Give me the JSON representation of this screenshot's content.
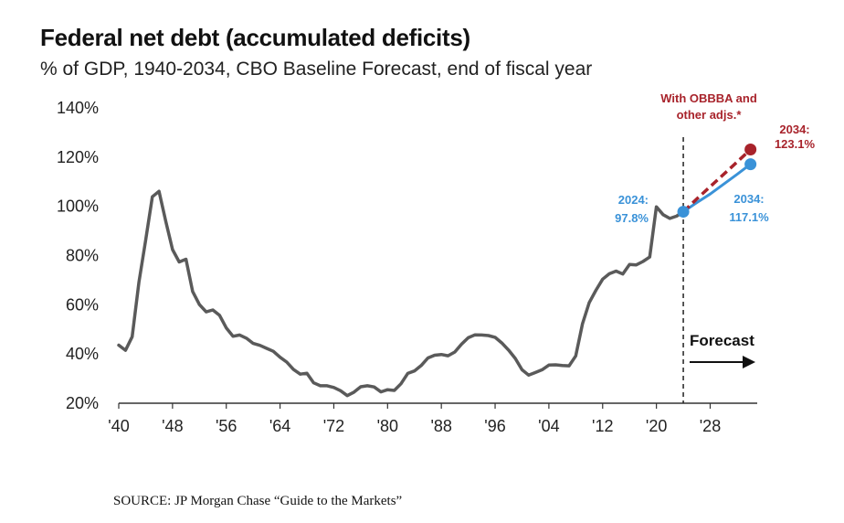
{
  "chart_data": {
    "type": "line",
    "title": "Federal net debt (accumulated deficits)",
    "subtitle": "% of GDP, 1940-2034, CBO Baseline Forecast, end of fiscal year",
    "xlim": [
      1940,
      2035
    ],
    "ylim": [
      20,
      140
    ],
    "x_ticks": [
      {
        "value": 1940,
        "label": "'40"
      },
      {
        "value": 1948,
        "label": "'48"
      },
      {
        "value": 1956,
        "label": "'56"
      },
      {
        "value": 1964,
        "label": "'64"
      },
      {
        "value": 1972,
        "label": "'72"
      },
      {
        "value": 1980,
        "label": "'80"
      },
      {
        "value": 1988,
        "label": "'88"
      },
      {
        "value": 1996,
        "label": "'96"
      },
      {
        "value": 2004,
        "label": "'04"
      },
      {
        "value": 2012,
        "label": "'12"
      },
      {
        "value": 2020,
        "label": "'20"
      },
      {
        "value": 2028,
        "label": "'28"
      }
    ],
    "y_ticks": [
      {
        "value": 20,
        "label": "20%"
      },
      {
        "value": 40,
        "label": "40%"
      },
      {
        "value": 60,
        "label": "60%"
      },
      {
        "value": 80,
        "label": "80%"
      },
      {
        "value": 100,
        "label": "100%"
      },
      {
        "value": 120,
        "label": "120%"
      },
      {
        "value": 140,
        "label": "140%"
      }
    ],
    "grid": false,
    "forecast_start": 2024,
    "forecast_label": "Forecast",
    "series": [
      {
        "color": "#5a5a5a",
        "x": [
          1940,
          1941,
          1942,
          1943,
          1944,
          1945,
          1946,
          1947,
          1948,
          1949,
          1950,
          1951,
          1952,
          1953,
          1954,
          1955,
          1956,
          1957,
          1958,
          1959,
          1960,
          1961,
          1962,
          1963,
          1964,
          1965,
          1966,
          1967,
          1968,
          1969,
          1970,
          1971,
          1972,
          1973,
          1974,
          1975,
          1976,
          1977,
          1978,
          1979,
          1980,
          1981,
          1982,
          1983,
          1984,
          1985,
          1986,
          1987,
          1988,
          1989,
          1990,
          1991,
          1992,
          1993,
          1994,
          1995,
          1996,
          1997,
          1998,
          1999,
          2000,
          2001,
          2002,
          2003,
          2004,
          2005,
          2006,
          2007,
          2008,
          2009,
          2010,
          2011,
          2012,
          2013,
          2014,
          2015,
          2016,
          2017,
          2018,
          2019,
          2020,
          2021,
          2022,
          2023,
          2024
        ],
        "y": [
          43.6,
          41.5,
          47,
          69.2,
          86.1,
          103.9,
          106.1,
          93.9,
          82.4,
          77.4,
          78.5,
          65.4,
          60.1,
          57.1,
          57.9,
          55.7,
          50.6,
          47.2,
          47.7,
          46.4,
          44.3,
          43.5,
          42.3,
          41.1,
          38.7,
          36.7,
          33.7,
          31.8,
          32.2,
          28.3,
          27.1,
          27.1,
          26.4,
          25.1,
          23.1,
          24.5,
          26.7,
          27.1,
          26.6,
          24.6,
          25.5,
          25.2,
          27.9,
          32.1,
          33.1,
          35.3,
          38.4,
          39.5,
          39.8,
          39.3,
          40.8,
          44,
          46.6,
          47.8,
          47.7,
          47.5,
          46.8,
          44.5,
          41.6,
          38.2,
          33.6,
          31.4,
          32.5,
          33.6,
          35.5,
          35.6,
          35.3,
          35.2,
          39.2,
          52.3,
          60.9,
          65.9,
          70.4,
          72.6,
          73.7,
          72.5,
          76.4,
          76.2,
          77.6,
          79.4,
          99.8,
          96.6,
          95.1,
          96,
          97.8
        ]
      },
      {
        "color": "#3a92d8",
        "x": [
          2024,
          2026,
          2028,
          2030,
          2032,
          2034
        ],
        "y": [
          97.8,
          101.5,
          105,
          109,
          113,
          117.1
        ]
      },
      {
        "color": "#a8232b",
        "x": [
          2024,
          2026,
          2028,
          2030,
          2032,
          2034
        ],
        "y": [
          97.8,
          103,
          108,
          113,
          118,
          123.1
        ]
      }
    ],
    "annotations": {
      "blue_start_year": "2024:",
      "blue_start_value": "97.8%",
      "blue_end_year": "2034:",
      "blue_end_value": "117.1%",
      "red_end_year": "2034:",
      "red_end_value": "123.1%",
      "red_note_line1": "With OBBBA and",
      "red_note_line2": "other adjs.*"
    }
  },
  "source": "SOURCE: JP Morgan Chase “Guide to the Markets”"
}
